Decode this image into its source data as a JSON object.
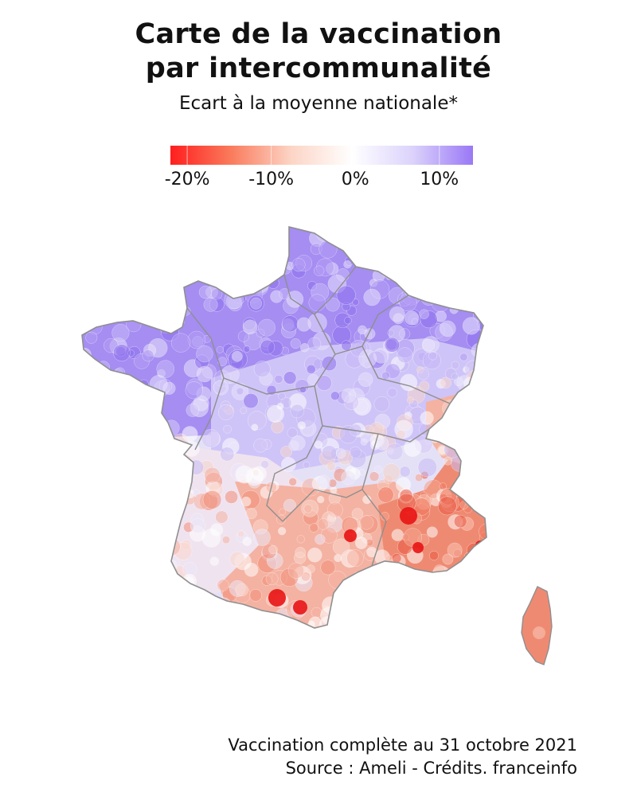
{
  "header": {
    "title_line1": "Carte de la vaccination",
    "title_line2": "par intercommunalité",
    "subtitle": "Ecart à la moyenne nationale*"
  },
  "legend": {
    "colors": [
      "#ff1e1e",
      "#fa7b5c",
      "#fcd5c6",
      "#ffffff",
      "#dcd3fb",
      "#9a78f6"
    ],
    "ticks": [
      {
        "label": "-20%",
        "value": -20
      },
      {
        "label": "-10%",
        "value": -10
      },
      {
        "label": "0%",
        "value": 0
      },
      {
        "label": "10%",
        "value": 10
      }
    ],
    "min": -22,
    "max": 14
  },
  "map": {
    "colors": {
      "north": "#a58df2",
      "center_north": "#cfc4f7",
      "center": "#e4e0f6",
      "southwest": "#efe3f0",
      "south": "#f4b2a2",
      "southeast": "#ef8a72",
      "hotspot": "#e81313",
      "border": "#8f8f8f"
    }
  },
  "footer": {
    "line1": "Vaccination complète au 31 octobre 2021",
    "line2": "Source : Ameli - Crédits. franceinfo"
  }
}
